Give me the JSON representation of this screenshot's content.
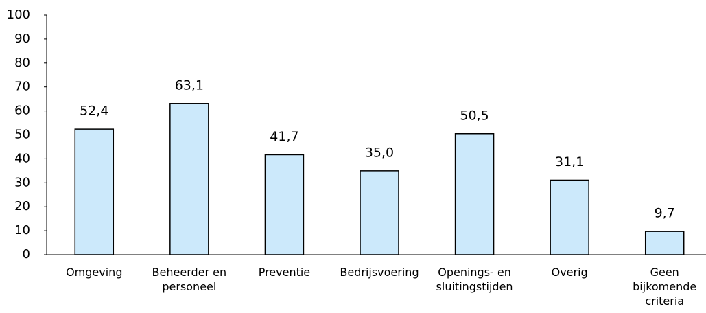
{
  "chart_data": {
    "type": "bar",
    "categories": [
      "Omgeving",
      "Beheerder en\npersoneel",
      "Preventie",
      "Bedrijsvoering",
      "Openings- en\nsluitingstijden",
      "Overig",
      "Geen\nbijkomende\ncriteria"
    ],
    "values": [
      52.4,
      63.1,
      41.7,
      35.0,
      50.5,
      31.1,
      9.7
    ],
    "value_labels": [
      "52,4",
      "63,1",
      "41,7",
      "35,0",
      "50,5",
      "31,1",
      "9,7"
    ],
    "color": "#cce9fb",
    "ylim": [
      0,
      100
    ],
    "yticks": [
      0,
      10,
      20,
      30,
      40,
      50,
      60,
      70,
      80,
      90,
      100
    ],
    "grid": false
  }
}
